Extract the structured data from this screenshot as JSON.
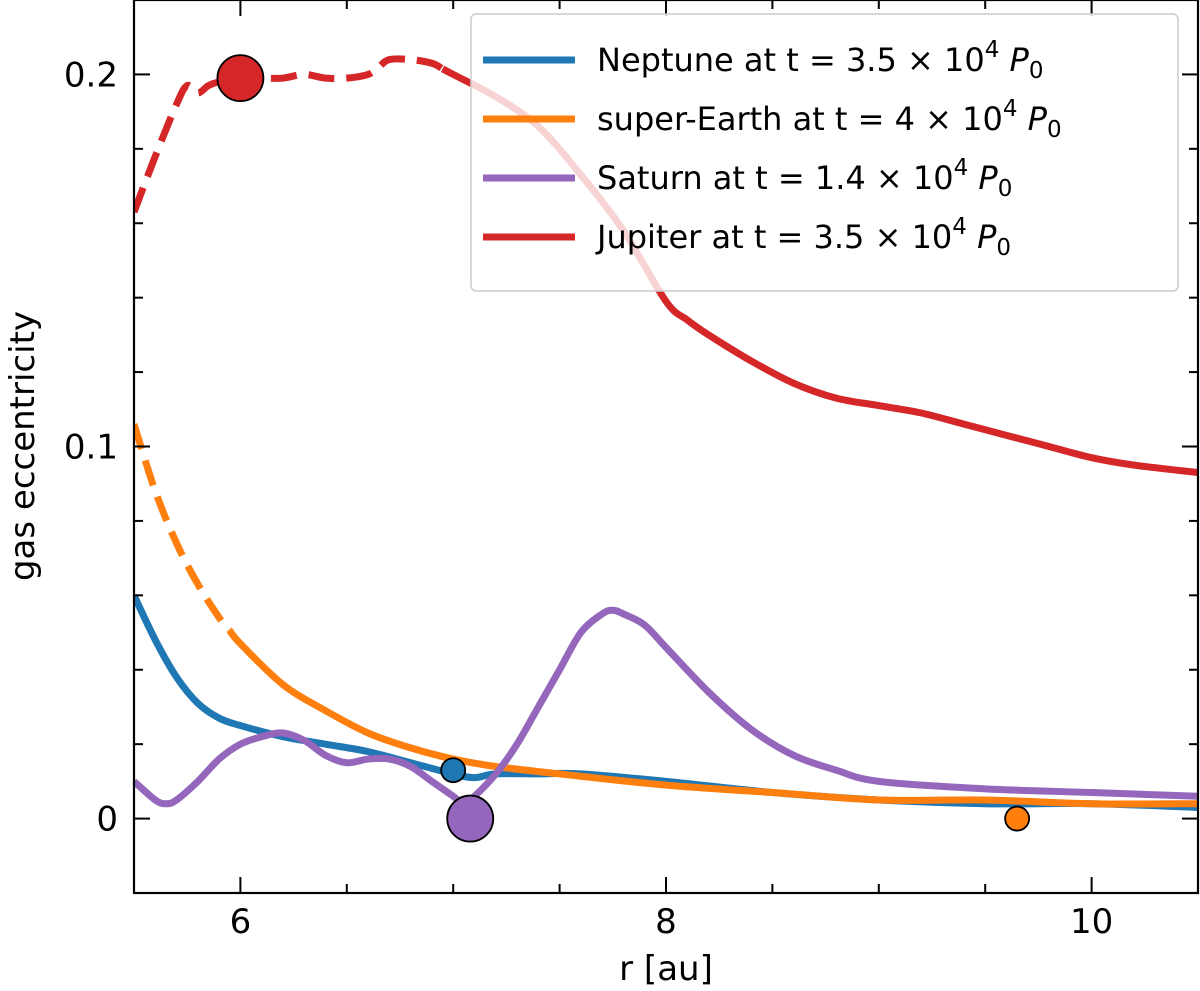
{
  "chart_data": {
    "type": "line",
    "xlabel": "r [au]",
    "ylabel": "gas eccentricity",
    "xlim": [
      5.5,
      10.5
    ],
    "ylim": [
      -0.02,
      0.22
    ],
    "xticks": [
      6,
      8,
      10
    ],
    "xtick_labels": [
      "6",
      "8",
      "10"
    ],
    "yticks": [
      0,
      0.1,
      0.2
    ],
    "ytick_labels": [
      "0",
      "0.1",
      "0.2"
    ],
    "grid": false,
    "legend_position": "top-right",
    "series": [
      {
        "name": "Neptune at t = 3.5 × 10⁴ P₀",
        "label_main": "Neptune at t = 3.5 × 10",
        "label_exp": "4",
        "label_var": "P",
        "label_sub": "0",
        "color": "#1f77b4",
        "dashed_until": 5.5,
        "planet": {
          "x": 7.0,
          "y": 0.013,
          "size": "small"
        },
        "points": [
          [
            5.5,
            0.06
          ],
          [
            5.6,
            0.048
          ],
          [
            5.7,
            0.038
          ],
          [
            5.8,
            0.031
          ],
          [
            5.9,
            0.027
          ],
          [
            6.0,
            0.025
          ],
          [
            6.2,
            0.022
          ],
          [
            6.4,
            0.02
          ],
          [
            6.6,
            0.018
          ],
          [
            6.8,
            0.015
          ],
          [
            7.0,
            0.012
          ],
          [
            7.1,
            0.011
          ],
          [
            7.2,
            0.012
          ],
          [
            7.4,
            0.012
          ],
          [
            7.6,
            0.012
          ],
          [
            8.0,
            0.01
          ],
          [
            8.5,
            0.007
          ],
          [
            9.0,
            0.005
          ],
          [
            9.5,
            0.004
          ],
          [
            10.0,
            0.004
          ],
          [
            10.5,
            0.003
          ]
        ]
      },
      {
        "name": "super-Earth at t = 4 × 10⁴ P₀",
        "label_main": "super-Earth at t = 4 × 10",
        "label_exp": "4",
        "label_var": "P",
        "label_sub": "0",
        "color": "#ff7f0e",
        "dashed_until": 5.95,
        "planet": {
          "x": 9.65,
          "y": 0.0,
          "size": "small"
        },
        "points": [
          [
            5.5,
            0.106
          ],
          [
            5.6,
            0.088
          ],
          [
            5.7,
            0.074
          ],
          [
            5.8,
            0.063
          ],
          [
            5.9,
            0.054
          ],
          [
            6.0,
            0.047
          ],
          [
            6.2,
            0.036
          ],
          [
            6.4,
            0.029
          ],
          [
            6.6,
            0.023
          ],
          [
            6.8,
            0.019
          ],
          [
            7.0,
            0.016
          ],
          [
            7.2,
            0.014
          ],
          [
            7.5,
            0.012
          ],
          [
            8.0,
            0.009
          ],
          [
            8.5,
            0.007
          ],
          [
            9.0,
            0.005
          ],
          [
            9.5,
            0.005
          ],
          [
            10.0,
            0.004
          ],
          [
            10.5,
            0.004
          ]
        ]
      },
      {
        "name": "Saturn at t = 1.4 × 10⁴ P₀",
        "label_main": "Saturn at t = 1.4 × 10",
        "label_exp": "4",
        "label_var": "P",
        "label_sub": "0",
        "color": "#9467bd",
        "dashed_until": 5.5,
        "planet": {
          "x": 7.08,
          "y": 0.0,
          "size": "large"
        },
        "points": [
          [
            5.5,
            0.01
          ],
          [
            5.6,
            0.005
          ],
          [
            5.65,
            0.004
          ],
          [
            5.7,
            0.005
          ],
          [
            5.8,
            0.01
          ],
          [
            5.9,
            0.016
          ],
          [
            6.0,
            0.02
          ],
          [
            6.1,
            0.022
          ],
          [
            6.2,
            0.023
          ],
          [
            6.3,
            0.021
          ],
          [
            6.4,
            0.017
          ],
          [
            6.5,
            0.015
          ],
          [
            6.6,
            0.016
          ],
          [
            6.7,
            0.016
          ],
          [
            6.8,
            0.014
          ],
          [
            6.9,
            0.01
          ],
          [
            7.0,
            0.006
          ],
          [
            7.05,
            0.004
          ],
          [
            7.1,
            0.006
          ],
          [
            7.2,
            0.012
          ],
          [
            7.3,
            0.02
          ],
          [
            7.4,
            0.03
          ],
          [
            7.5,
            0.04
          ],
          [
            7.6,
            0.05
          ],
          [
            7.7,
            0.055
          ],
          [
            7.75,
            0.056
          ],
          [
            7.8,
            0.055
          ],
          [
            7.9,
            0.052
          ],
          [
            8.0,
            0.046
          ],
          [
            8.2,
            0.034
          ],
          [
            8.4,
            0.024
          ],
          [
            8.6,
            0.017
          ],
          [
            8.8,
            0.013
          ],
          [
            9.0,
            0.01
          ],
          [
            9.5,
            0.008
          ],
          [
            10.0,
            0.007
          ],
          [
            10.5,
            0.006
          ]
        ]
      },
      {
        "name": "Jupiter at t = 3.5 × 10⁴ P₀",
        "label_main": "Jupiter at t = 3.5 × 10",
        "label_exp": "4",
        "label_var": "P",
        "label_sub": "0",
        "color": "#d62728",
        "dashed_until": 6.95,
        "planet": {
          "x": 6.0,
          "y": 0.199,
          "size": "large"
        },
        "points": [
          [
            5.5,
            0.163
          ],
          [
            5.6,
            0.178
          ],
          [
            5.7,
            0.192
          ],
          [
            5.75,
            0.197
          ],
          [
            5.8,
            0.195
          ],
          [
            5.85,
            0.197
          ],
          [
            5.9,
            0.198
          ],
          [
            6.0,
            0.199
          ],
          [
            6.1,
            0.199
          ],
          [
            6.2,
            0.199
          ],
          [
            6.3,
            0.2
          ],
          [
            6.4,
            0.199
          ],
          [
            6.5,
            0.199
          ],
          [
            6.6,
            0.2
          ],
          [
            6.65,
            0.202
          ],
          [
            6.7,
            0.204
          ],
          [
            6.8,
            0.204
          ],
          [
            6.9,
            0.203
          ],
          [
            7.0,
            0.2
          ],
          [
            7.2,
            0.194
          ],
          [
            7.4,
            0.186
          ],
          [
            7.6,
            0.173
          ],
          [
            7.8,
            0.158
          ],
          [
            8.0,
            0.139
          ],
          [
            8.1,
            0.134
          ],
          [
            8.2,
            0.13
          ],
          [
            8.4,
            0.123
          ],
          [
            8.6,
            0.117
          ],
          [
            8.8,
            0.113
          ],
          [
            9.0,
            0.111
          ],
          [
            9.2,
            0.109
          ],
          [
            9.4,
            0.106
          ],
          [
            9.6,
            0.103
          ],
          [
            9.8,
            0.1
          ],
          [
            10.0,
            0.097
          ],
          [
            10.2,
            0.095
          ],
          [
            10.5,
            0.093
          ]
        ]
      }
    ]
  }
}
